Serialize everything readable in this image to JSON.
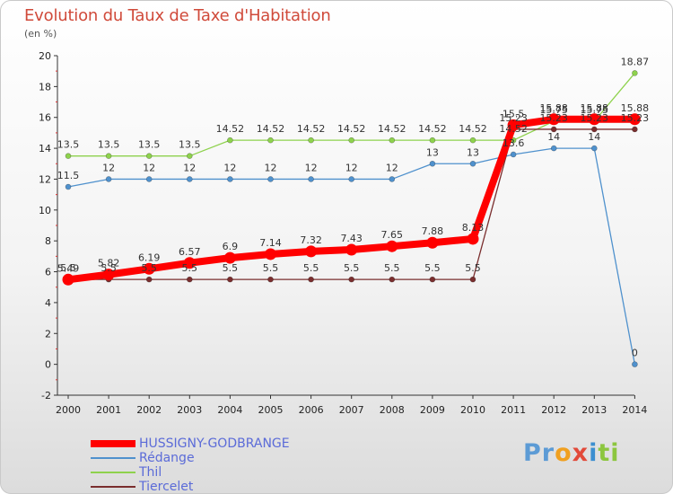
{
  "title": "Evolution du Taux de Taxe d'Habitation",
  "unit_label": "(en %)",
  "brand": {
    "parts": [
      "Pr",
      "o",
      "x",
      "i",
      "ti"
    ],
    "colors": [
      "#5c9bd5",
      "#f0a020",
      "#e24a3a",
      "#3c8fd0",
      "#8cc63f"
    ]
  },
  "chart_data": {
    "type": "line",
    "x": [
      2000,
      2001,
      2002,
      2003,
      2004,
      2005,
      2006,
      2007,
      2008,
      2009,
      2010,
      2011,
      2012,
      2013,
      2014
    ],
    "ylim": [
      -2,
      20
    ],
    "yticks": [
      -2,
      0,
      2,
      4,
      6,
      8,
      10,
      12,
      14,
      16,
      18,
      20
    ],
    "grid": false,
    "legend_position": "bottom-left",
    "series": [
      {
        "name": "HUSSIGNY-GODBRANGE",
        "color": "#ff0000",
        "values": [
          5.49,
          5.82,
          6.19,
          6.57,
          6.9,
          7.14,
          7.32,
          7.43,
          7.65,
          7.88,
          8.13,
          15.5,
          15.88,
          15.88,
          15.88
        ],
        "labels": [
          "5.49",
          "5.82",
          "6.19",
          "6.57",
          "6.9",
          "7.14",
          "7.32",
          "7.43",
          "7.65",
          "7.88",
          "8.13",
          "15.5",
          "15.88",
          "15.88",
          "15.88"
        ]
      },
      {
        "name": "Rédange",
        "color": "#4f91cd",
        "values": [
          11.5,
          12,
          12,
          12,
          12,
          12,
          12,
          12,
          12,
          13,
          13,
          13.6,
          14,
          14,
          0
        ],
        "labels": [
          "11.5",
          "12",
          "12",
          "12",
          "12",
          "12",
          "12",
          "12",
          "12",
          "13",
          "13",
          "13.6",
          "14",
          "14",
          "0"
        ]
      },
      {
        "name": "Thil",
        "color": "#8ed24d",
        "values": [
          13.5,
          13.5,
          13.5,
          13.5,
          14.52,
          14.52,
          14.52,
          14.52,
          14.52,
          14.52,
          14.52,
          14.52,
          15.75,
          15.75,
          18.87
        ],
        "labels": [
          "13.5",
          "13.5",
          "13.5",
          "13.5",
          "14.52",
          "14.52",
          "14.52",
          "14.52",
          "14.52",
          "14.52",
          "14.52",
          "14.52",
          "15.75",
          "15.75",
          "18.87"
        ]
      },
      {
        "name": "Tiercelet",
        "color": "#7a2e2e",
        "values": [
          5.5,
          5.5,
          5.5,
          5.5,
          5.5,
          5.5,
          5.5,
          5.5,
          5.5,
          5.5,
          5.5,
          15.23,
          15.23,
          15.23,
          15.23
        ],
        "labels": [
          "5.5",
          "5.5",
          "5.5",
          "5.5",
          "5.5",
          "5.5",
          "5.5",
          "5.5",
          "5.5",
          "5.5",
          "5.5",
          "15.23",
          "15.23",
          "15.23",
          "15.23"
        ]
      }
    ]
  }
}
